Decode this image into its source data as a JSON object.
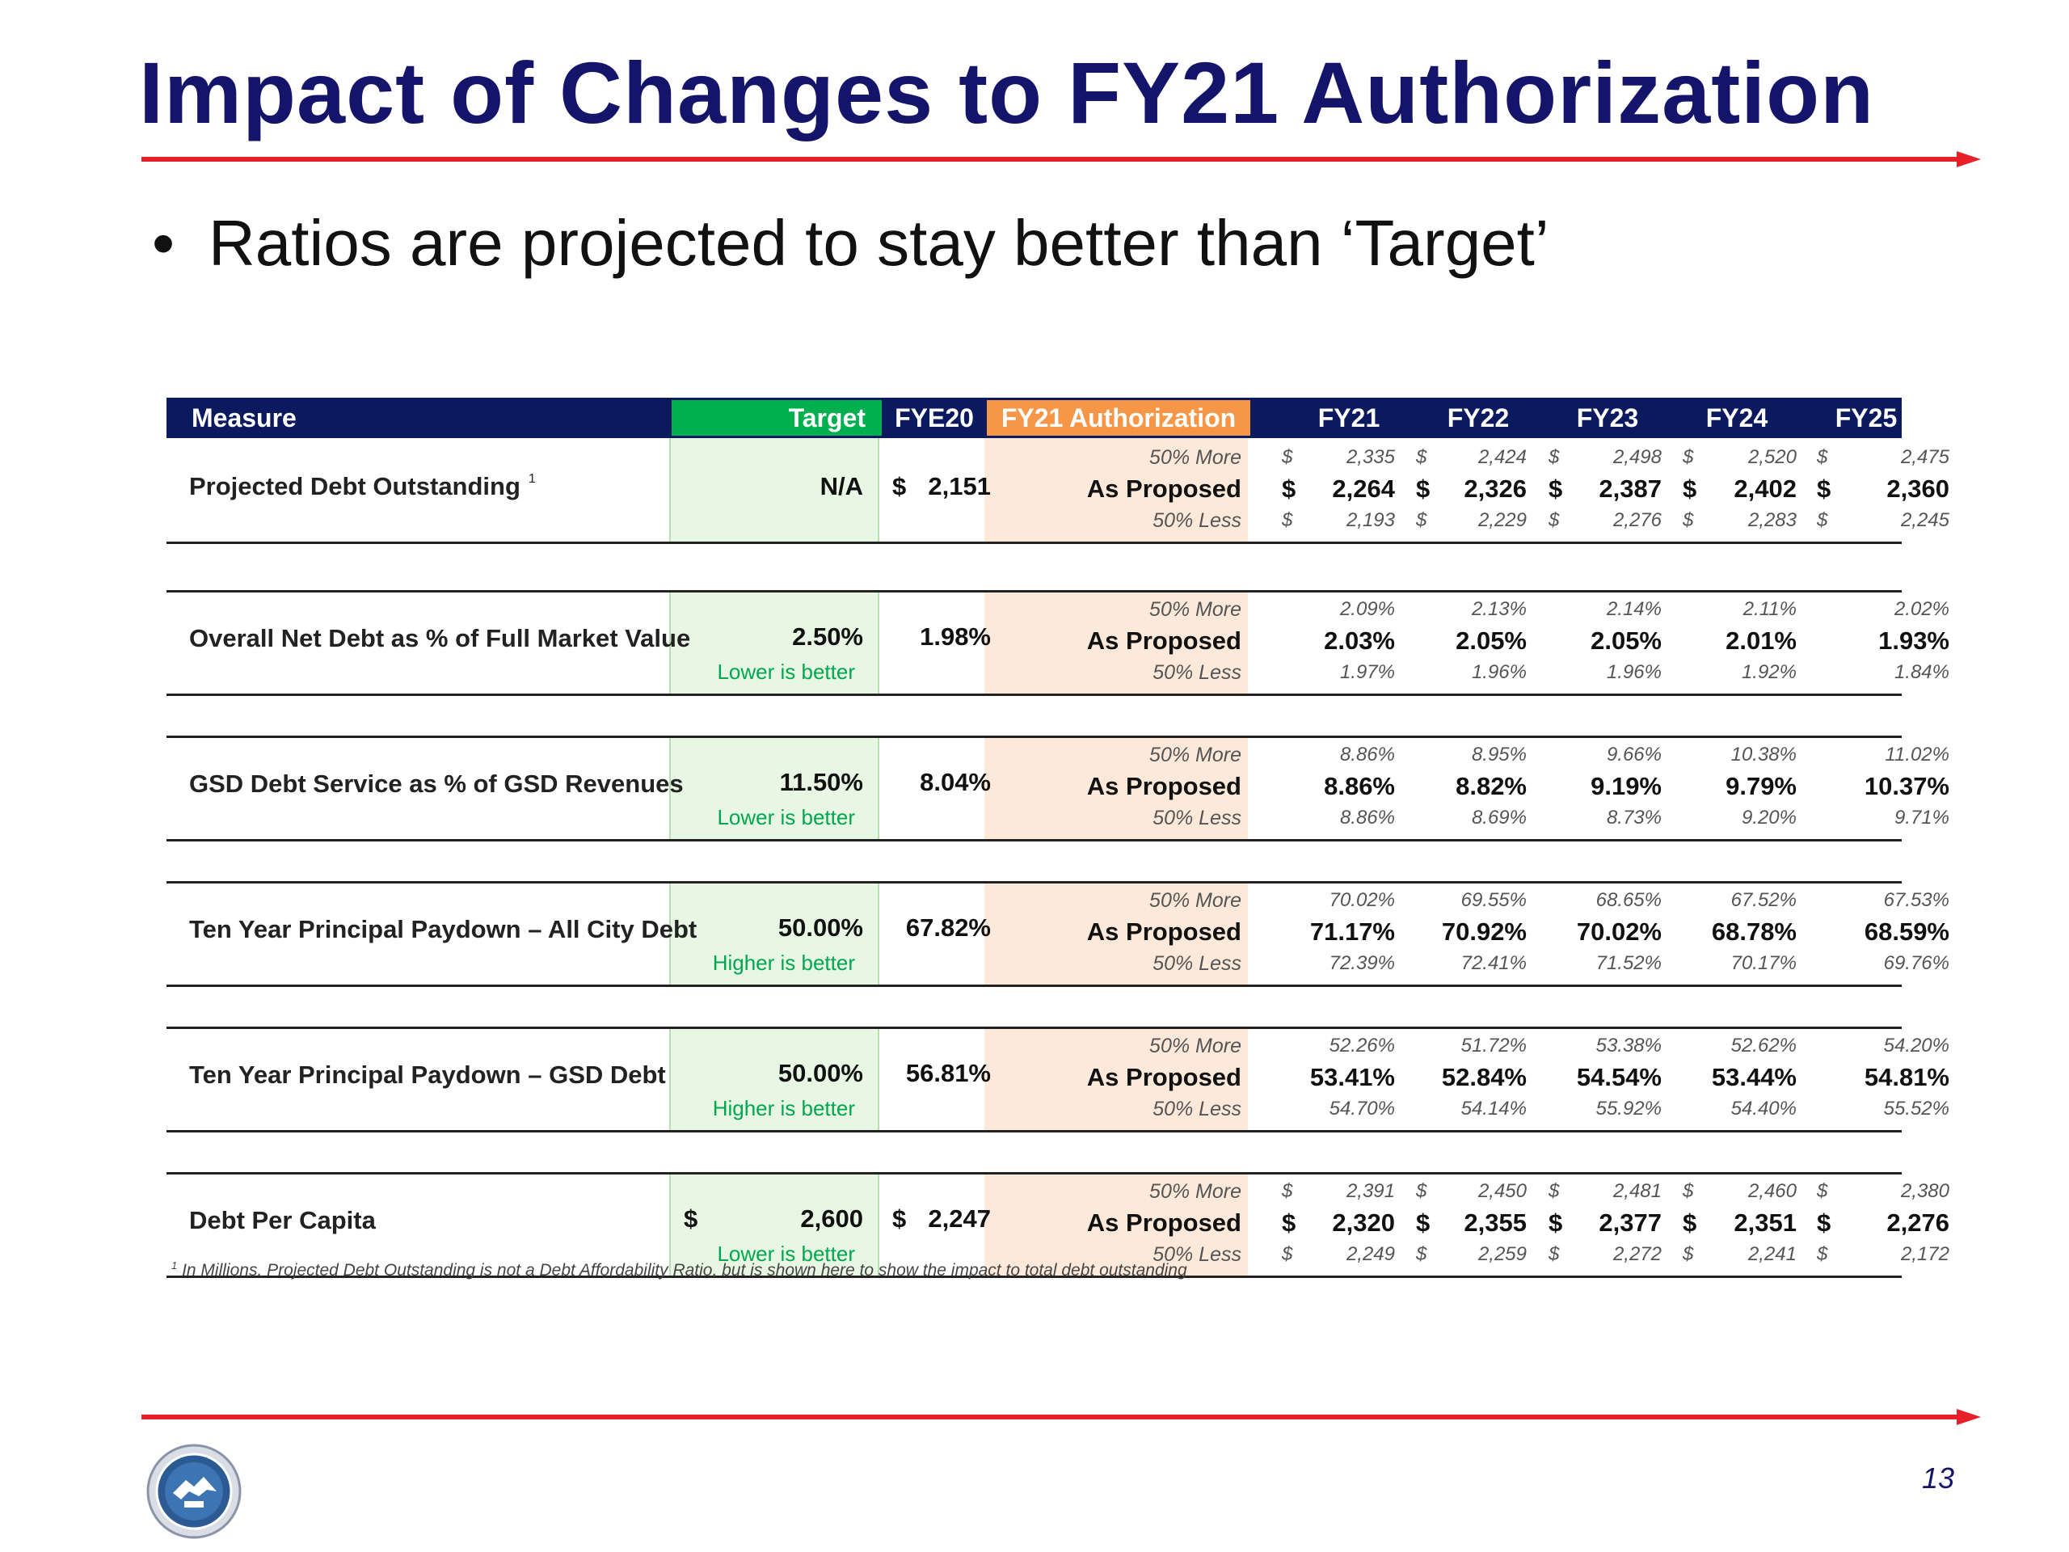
{
  "slide": {
    "title": "Impact of Changes to FY21 Authorization",
    "bullet": "Ratios are projected to stay better than ‘Target’",
    "page_number": "13",
    "footnote_marker": "1",
    "footnote": "In Millions.  Projected Debt Outstanding is not a Debt Affordability Ratio, but is shown here to show the impact to total debt outstanding",
    "colors": {
      "title": "#14146b",
      "rule": "#e8202a",
      "header_bg": "#0b1a5e",
      "target_header": "#00b04f",
      "auth_header": "#f79646",
      "target_note": "#00a650"
    }
  },
  "table": {
    "headers": {
      "measure": "Measure",
      "target": "Target",
      "fye20": "FYE20",
      "authorization": "FY21 Authorization",
      "years": [
        "FY21",
        "FY22",
        "FY23",
        "FY24",
        "FY25"
      ]
    },
    "row_labels": [
      "50% More",
      "As Proposed",
      "50% Less"
    ],
    "currency": "$",
    "measures": [
      {
        "name": "Projected Debt Outstanding",
        "footnote_ref": "1",
        "target": "N/A",
        "target_dollar": "",
        "target_note": "",
        "fye20": "2,151",
        "fye20_dollar": "$",
        "currency_rows": true,
        "values": [
          [
            "2,335",
            "2,424",
            "2,498",
            "2,520",
            "2,475"
          ],
          [
            "2,264",
            "2,326",
            "2,387",
            "2,402",
            "2,360"
          ],
          [
            "2,193",
            "2,229",
            "2,276",
            "2,283",
            "2,245"
          ]
        ]
      },
      {
        "name": "Overall Net Debt as % of Full Market Value",
        "footnote_ref": "",
        "target": "2.50%",
        "target_dollar": "",
        "target_note": "Lower is better",
        "fye20": "1.98%",
        "fye20_dollar": "",
        "currency_rows": false,
        "values": [
          [
            "2.09%",
            "2.13%",
            "2.14%",
            "2.11%",
            "2.02%"
          ],
          [
            "2.03%",
            "2.05%",
            "2.05%",
            "2.01%",
            "1.93%"
          ],
          [
            "1.97%",
            "1.96%",
            "1.96%",
            "1.92%",
            "1.84%"
          ]
        ]
      },
      {
        "name": "GSD Debt Service as % of GSD Revenues",
        "footnote_ref": "",
        "target": "11.50%",
        "target_dollar": "",
        "target_note": "Lower is better",
        "fye20": "8.04%",
        "fye20_dollar": "",
        "currency_rows": false,
        "values": [
          [
            "8.86%",
            "8.95%",
            "9.66%",
            "10.38%",
            "11.02%"
          ],
          [
            "8.86%",
            "8.82%",
            "9.19%",
            "9.79%",
            "10.37%"
          ],
          [
            "8.86%",
            "8.69%",
            "8.73%",
            "9.20%",
            "9.71%"
          ]
        ]
      },
      {
        "name": "Ten Year Principal Paydown – All City Debt",
        "footnote_ref": "",
        "target": "50.00%",
        "target_dollar": "",
        "target_note": "Higher is better",
        "fye20": "67.82%",
        "fye20_dollar": "",
        "currency_rows": false,
        "values": [
          [
            "70.02%",
            "69.55%",
            "68.65%",
            "67.52%",
            "67.53%"
          ],
          [
            "71.17%",
            "70.92%",
            "70.02%",
            "68.78%",
            "68.59%"
          ],
          [
            "72.39%",
            "72.41%",
            "71.52%",
            "70.17%",
            "69.76%"
          ]
        ]
      },
      {
        "name": "Ten Year Principal Paydown – GSD Debt",
        "footnote_ref": "",
        "target": "50.00%",
        "target_dollar": "",
        "target_note": "Higher is better",
        "fye20": "56.81%",
        "fye20_dollar": "",
        "currency_rows": false,
        "values": [
          [
            "52.26%",
            "51.72%",
            "53.38%",
            "52.62%",
            "54.20%"
          ],
          [
            "53.41%",
            "52.84%",
            "54.54%",
            "53.44%",
            "54.81%"
          ],
          [
            "54.70%",
            "54.14%",
            "55.92%",
            "54.40%",
            "55.52%"
          ]
        ]
      },
      {
        "name": "Debt Per Capita",
        "footnote_ref": "",
        "target": "2,600",
        "target_dollar": "$",
        "target_note": "Lower is better",
        "fye20": "2,247",
        "fye20_dollar": "$",
        "currency_rows": true,
        "values": [
          [
            "2,391",
            "2,450",
            "2,481",
            "2,460",
            "2,380"
          ],
          [
            "2,320",
            "2,355",
            "2,377",
            "2,351",
            "2,276"
          ],
          [
            "2,249",
            "2,259",
            "2,272",
            "2,241",
            "2,172"
          ]
        ]
      }
    ]
  }
}
